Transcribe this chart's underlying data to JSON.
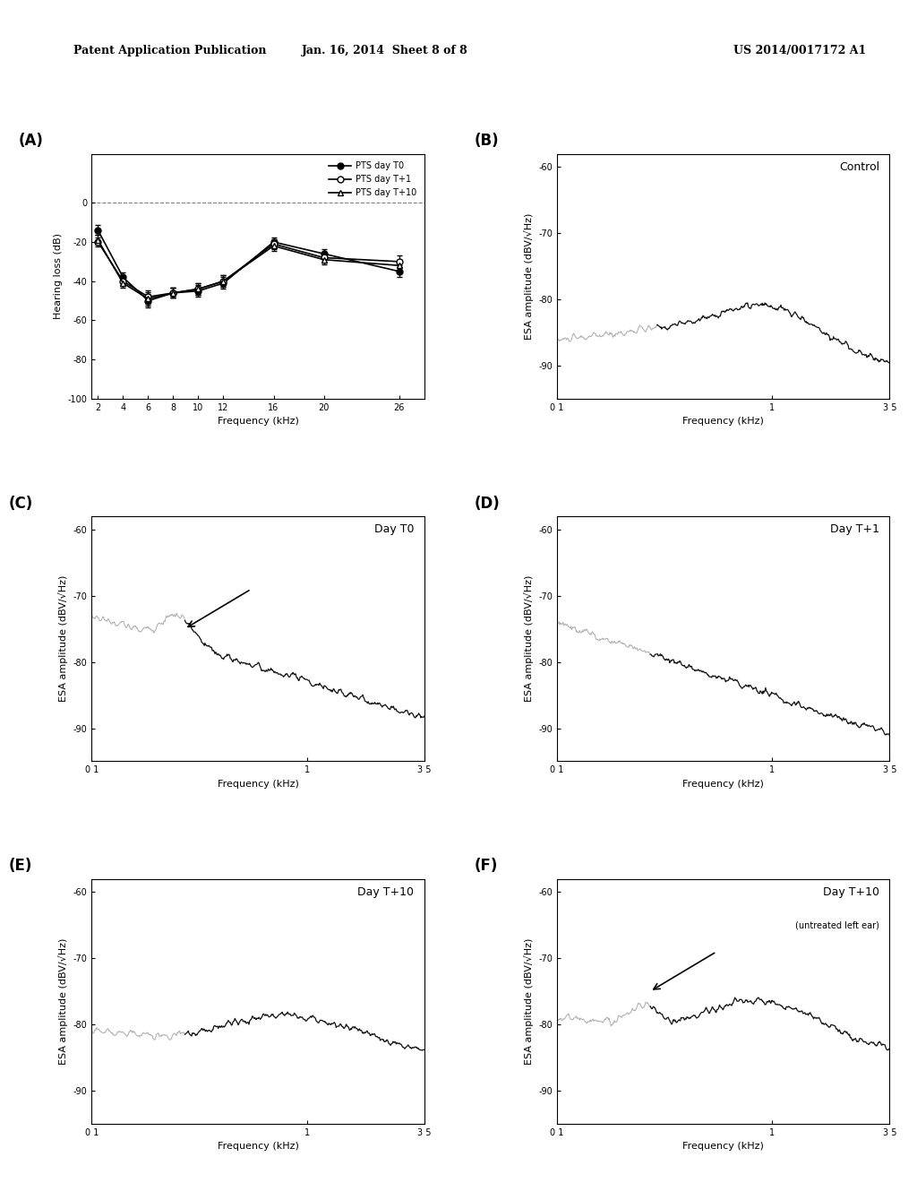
{
  "panel_A": {
    "label": "(A)",
    "freqs": [
      2,
      4,
      6,
      8,
      10,
      12,
      16,
      20,
      26
    ],
    "T0_mean": [
      -14,
      -38,
      -50,
      -46,
      -45,
      -41,
      -20,
      -26,
      -35
    ],
    "T0_err": [
      2.5,
      2.5,
      3.5,
      2.5,
      3.0,
      3.0,
      2.5,
      2.5,
      3.0
    ],
    "T1_mean": [
      -20,
      -40,
      -48,
      -46,
      -44,
      -40,
      -21,
      -28,
      -30
    ],
    "T1_err": [
      2.5,
      2.5,
      3.5,
      2.5,
      3.0,
      3.0,
      2.5,
      2.5,
      3.0
    ],
    "T10_mean": [
      -19,
      -41,
      -49,
      -46,
      -44,
      -40,
      -22,
      -29,
      -32
    ],
    "T10_err": [
      2.5,
      2.5,
      3.5,
      2.5,
      3.0,
      3.0,
      2.5,
      2.5,
      3.0
    ],
    "ylim": [
      -100,
      25
    ],
    "yticks": [
      0,
      -20,
      -40,
      -60,
      -80,
      -100
    ],
    "xlabel": "Frequency (kHz)",
    "ylabel": "Hearing loss (dB)",
    "xticks": [
      2,
      4,
      6,
      8,
      10,
      12,
      16,
      20,
      26
    ]
  },
  "panel_B": {
    "label": "(B)",
    "title": "Control",
    "subtitle": "",
    "arrow": false,
    "ylim": [
      -95,
      -58
    ],
    "yticks": [
      -60,
      -70,
      -80,
      -90
    ],
    "xlabel": "Frequency (kHz)",
    "ylabel": "ESA amplitude (dBV/√Hz)"
  },
  "panel_C": {
    "label": "(C)",
    "title": "Day T0",
    "subtitle": "",
    "arrow": true,
    "ylim": [
      -95,
      -58
    ],
    "yticks": [
      -60,
      -70,
      -80,
      -90
    ],
    "xlabel": "Frequency (kHz)",
    "ylabel": "ESA amplitude (dBV/√Hz)"
  },
  "panel_D": {
    "label": "(D)",
    "title": "Day T+1",
    "subtitle": "",
    "arrow": false,
    "ylim": [
      -95,
      -58
    ],
    "yticks": [
      -60,
      -70,
      -80,
      -90
    ],
    "xlabel": "Frequency (kHz)",
    "ylabel": "ESA amplitude (dBV/√Hz)"
  },
  "panel_E": {
    "label": "(E)",
    "title": "Day T+10",
    "subtitle": "",
    "arrow": false,
    "ylim": [
      -95,
      -58
    ],
    "yticks": [
      -60,
      -70,
      -80,
      -90
    ],
    "xlabel": "Frequency (kHz)",
    "ylabel": "ESA amplitude (dBV/√Hz)"
  },
  "panel_F": {
    "label": "(F)",
    "title": "Day T+10",
    "subtitle": "(untreated left ear)",
    "arrow": true,
    "ylim": [
      -95,
      -58
    ],
    "yticks": [
      -60,
      -70,
      -80,
      -90
    ],
    "xlabel": "Frequency (kHz)",
    "ylabel": "ESA amplitude (dBV/√Hz)"
  },
  "header": {
    "left": "Patent Application Publication",
    "center": "Jan. 16, 2014  Sheet 8 of 8",
    "right": "US 2014/0017172 A1"
  }
}
